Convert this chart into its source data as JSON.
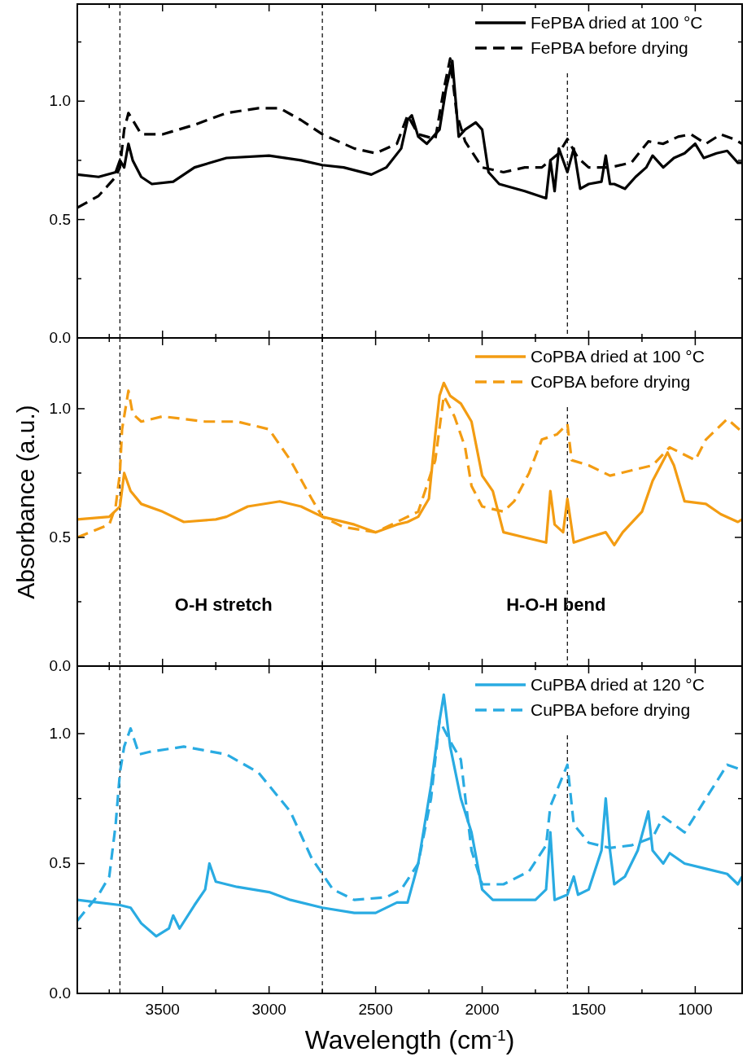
{
  "chart_data": [
    {
      "type": "line",
      "xlim": [
        3900,
        780
      ],
      "xticks": [
        {
          "value": 3750,
          "label": null
        },
        3500,
        {
          "value": 3250,
          "label": null
        },
        3000,
        {
          "value": 2750,
          "label": null
        },
        2500,
        {
          "value": 2250,
          "label": null
        },
        2000,
        {
          "value": 1750,
          "label": null
        },
        1500,
        {
          "value": 1250,
          "label": null
        },
        1000
      ],
      "ylim": [
        0,
        1.41
      ],
      "yticks": [
        {
          "value": 0,
          "label": "0.0"
        },
        {
          "value": 0.25,
          "label": null
        },
        {
          "value": 0.5,
          "label": "0.5"
        },
        {
          "value": 0.75,
          "label": null
        },
        {
          "value": 1,
          "label": "1.0"
        },
        {
          "value": 1.25,
          "label": null
        }
      ],
      "tick_labels": "y",
      "legend": "top right",
      "ref_lines": [
        {
          "axis": "x",
          "value": 3700,
          "color": "#000000",
          "line_style": "dashed"
        },
        {
          "axis": "x",
          "value": 2750,
          "color": "#000000",
          "line_style": "dashed"
        },
        {
          "axis": "x",
          "value": 1600,
          "color": "#000000",
          "line_style": "dashed"
        }
      ],
      "series": [
        {
          "name": "FePBA dried at 100 °C",
          "color": "#000000",
          "line_style": "solid",
          "x": [
            3900,
            3800,
            3720,
            3700,
            3680,
            3660,
            3640,
            3600,
            3550,
            3450,
            3350,
            3200,
            3000,
            2850,
            2750,
            2650,
            2520,
            2450,
            2380,
            2350,
            2330,
            2300,
            2260,
            2200,
            2170,
            2140,
            2110,
            2080,
            2030,
            2000,
            1970,
            1920,
            1800,
            1700,
            1680,
            1660,
            1640,
            1600,
            1570,
            1540,
            1500,
            1440,
            1420,
            1400,
            1380,
            1330,
            1280,
            1230,
            1200,
            1150,
            1100,
            1050,
            1000,
            960,
            900,
            850,
            800,
            780
          ],
          "values": [
            0.69,
            0.68,
            0.7,
            0.75,
            0.72,
            0.82,
            0.75,
            0.68,
            0.65,
            0.66,
            0.72,
            0.76,
            0.77,
            0.75,
            0.73,
            0.72,
            0.69,
            0.72,
            0.8,
            0.92,
            0.94,
            0.85,
            0.82,
            0.88,
            1.05,
            1.17,
            0.85,
            0.88,
            0.91,
            0.88,
            0.7,
            0.65,
            0.62,
            0.59,
            0.75,
            0.62,
            0.8,
            0.7,
            0.8,
            0.63,
            0.65,
            0.66,
            0.77,
            0.65,
            0.65,
            0.63,
            0.68,
            0.72,
            0.77,
            0.72,
            0.76,
            0.78,
            0.82,
            0.76,
            0.78,
            0.79,
            0.74,
            0.74
          ]
        },
        {
          "name": "FePBA before drying",
          "color": "#000000",
          "line_style": "dashed",
          "x": [
            3900,
            3800,
            3720,
            3700,
            3680,
            3660,
            3640,
            3600,
            3500,
            3350,
            3200,
            3050,
            2950,
            2850,
            2750,
            2600,
            2500,
            2400,
            2350,
            2300,
            2220,
            2180,
            2150,
            2120,
            2080,
            2000,
            1900,
            1800,
            1720,
            1680,
            1640,
            1600,
            1550,
            1500,
            1400,
            1300,
            1220,
            1150,
            1080,
            1020,
            950,
            880,
            820,
            780
          ],
          "values": [
            0.55,
            0.6,
            0.68,
            0.72,
            0.88,
            0.95,
            0.92,
            0.86,
            0.86,
            0.9,
            0.95,
            0.97,
            0.97,
            0.92,
            0.86,
            0.8,
            0.78,
            0.82,
            0.94,
            0.86,
            0.84,
            1.05,
            1.18,
            0.95,
            0.83,
            0.72,
            0.7,
            0.72,
            0.72,
            0.75,
            0.78,
            0.84,
            0.76,
            0.72,
            0.72,
            0.74,
            0.83,
            0.82,
            0.85,
            0.86,
            0.82,
            0.86,
            0.84,
            0.82
          ]
        }
      ]
    },
    {
      "type": "line",
      "xlim": [
        3900,
        780
      ],
      "xticks": [
        {
          "value": 3750,
          "label": null
        },
        3500,
        {
          "value": 3250,
          "label": null
        },
        3000,
        {
          "value": 2750,
          "label": null
        },
        2500,
        {
          "value": 2250,
          "label": null
        },
        2000,
        {
          "value": 1750,
          "label": null
        },
        1500,
        {
          "value": 1250,
          "label": null
        },
        1000
      ],
      "ylim": [
        0,
        1.275
      ],
      "yticks": [
        {
          "value": 0,
          "label": "0.0"
        },
        {
          "value": 0.25,
          "label": null
        },
        {
          "value": 0.5,
          "label": "0.5"
        },
        {
          "value": 0.75,
          "label": null
        },
        {
          "value": 1,
          "label": "1.0"
        }
      ],
      "tick_labels": "y",
      "ylabel": "Absorbance (a.u.)",
      "legend": "top right",
      "annotations": [
        "O-H stretch",
        "H-O-H bend"
      ],
      "ref_lines": [
        {
          "axis": "x",
          "value": 3700,
          "color": "#000000",
          "line_style": "dashed"
        },
        {
          "axis": "x",
          "value": 2750,
          "color": "#000000",
          "line_style": "dashed"
        },
        {
          "axis": "x",
          "value": 1600,
          "color": "#000000",
          "line_style": "dashed"
        }
      ],
      "series": [
        {
          "name": "CoPBA dried at 100 °C",
          "color": "#f39c12",
          "line_style": "solid",
          "x": [
            3900,
            3750,
            3700,
            3680,
            3650,
            3600,
            3500,
            3400,
            3250,
            3200,
            3100,
            2950,
            2850,
            2750,
            2600,
            2500,
            2400,
            2350,
            2300,
            2250,
            2220,
            2200,
            2180,
            2150,
            2100,
            2050,
            2000,
            1950,
            1900,
            1800,
            1700,
            1680,
            1660,
            1620,
            1600,
            1570,
            1500,
            1420,
            1380,
            1340,
            1250,
            1200,
            1130,
            1100,
            1050,
            950,
            880,
            800,
            780
          ],
          "values": [
            0.57,
            0.58,
            0.62,
            0.75,
            0.68,
            0.63,
            0.6,
            0.56,
            0.57,
            0.58,
            0.62,
            0.64,
            0.62,
            0.58,
            0.55,
            0.52,
            0.55,
            0.56,
            0.58,
            0.65,
            0.9,
            1.05,
            1.1,
            1.05,
            1.02,
            0.95,
            0.74,
            0.68,
            0.52,
            0.5,
            0.48,
            0.68,
            0.55,
            0.52,
            0.65,
            0.48,
            0.5,
            0.52,
            0.47,
            0.52,
            0.6,
            0.72,
            0.83,
            0.78,
            0.64,
            0.63,
            0.59,
            0.56,
            0.57
          ]
        },
        {
          "name": "CoPBA before drying",
          "color": "#f39c12",
          "line_style": "dashed",
          "x": [
            3900,
            3750,
            3720,
            3700,
            3690,
            3660,
            3640,
            3600,
            3500,
            3300,
            3150,
            3000,
            2900,
            2800,
            2750,
            2650,
            2500,
            2400,
            2300,
            2220,
            2180,
            2130,
            2080,
            2050,
            2000,
            1900,
            1850,
            1780,
            1720,
            1650,
            1600,
            1580,
            1500,
            1400,
            1300,
            1200,
            1120,
            1000,
            950,
            850,
            780
          ],
          "values": [
            0.5,
            0.55,
            0.62,
            0.75,
            0.92,
            1.07,
            0.98,
            0.95,
            0.97,
            0.95,
            0.95,
            0.92,
            0.8,
            0.65,
            0.58,
            0.54,
            0.52,
            0.56,
            0.6,
            0.8,
            1.05,
            0.97,
            0.85,
            0.7,
            0.62,
            0.6,
            0.64,
            0.75,
            0.88,
            0.9,
            0.94,
            0.8,
            0.78,
            0.74,
            0.76,
            0.78,
            0.85,
            0.8,
            0.88,
            0.96,
            0.91
          ]
        }
      ]
    },
    {
      "type": "line",
      "xlim": [
        3900,
        780
      ],
      "xticks": [
        {
          "value": 3750,
          "label": null
        },
        {
          "value": 3500,
          "label": "3500"
        },
        {
          "value": 3250,
          "label": null
        },
        {
          "value": 3000,
          "label": "3000"
        },
        {
          "value": 2750,
          "label": null
        },
        {
          "value": 2500,
          "label": "2500"
        },
        {
          "value": 2250,
          "label": null
        },
        {
          "value": 2000,
          "label": "2000"
        },
        {
          "value": 1750,
          "label": null
        },
        {
          "value": 1500,
          "label": "1500"
        },
        {
          "value": 1250,
          "label": null
        },
        {
          "value": 1000,
          "label": "1000"
        }
      ],
      "ylim": [
        0,
        1.26
      ],
      "yticks": [
        {
          "value": 0,
          "label": "0.0"
        },
        {
          "value": 0.25,
          "label": null
        },
        {
          "value": 0.5,
          "label": "0.5"
        },
        {
          "value": 0.75,
          "label": null
        },
        {
          "value": 1,
          "label": "1.0"
        }
      ],
      "xlabel": "Wavelength (cm$^{-1}$)",
      "legend": "top right",
      "ref_lines": [
        {
          "axis": "x",
          "value": 3700,
          "color": "#000000",
          "line_style": "dashed"
        },
        {
          "axis": "x",
          "value": 2750,
          "color": "#000000",
          "line_style": "dashed"
        },
        {
          "axis": "x",
          "value": 1600,
          "color": "#000000",
          "line_style": "dashed"
        }
      ],
      "series": [
        {
          "name": "CuPBA dried at 120 °C",
          "color": "#29abe2",
          "line_style": "solid",
          "x": [
            3900,
            3800,
            3700,
            3650,
            3600,
            3530,
            3470,
            3450,
            3420,
            3350,
            3300,
            3280,
            3250,
            3150,
            3000,
            2900,
            2750,
            2600,
            2500,
            2400,
            2350,
            2300,
            2240,
            2200,
            2180,
            2150,
            2100,
            2050,
            2000,
            1950,
            1850,
            1750,
            1700,
            1680,
            1660,
            1600,
            1570,
            1550,
            1500,
            1440,
            1420,
            1400,
            1380,
            1330,
            1270,
            1220,
            1200,
            1150,
            1120,
            1050,
            950,
            850,
            800,
            780
          ],
          "values": [
            0.36,
            0.35,
            0.34,
            0.33,
            0.27,
            0.22,
            0.25,
            0.3,
            0.25,
            0.34,
            0.4,
            0.5,
            0.43,
            0.41,
            0.39,
            0.36,
            0.33,
            0.31,
            0.31,
            0.35,
            0.35,
            0.5,
            0.8,
            1.05,
            1.15,
            0.95,
            0.75,
            0.62,
            0.4,
            0.36,
            0.36,
            0.36,
            0.4,
            0.62,
            0.36,
            0.38,
            0.45,
            0.38,
            0.4,
            0.55,
            0.75,
            0.55,
            0.42,
            0.45,
            0.55,
            0.7,
            0.55,
            0.5,
            0.54,
            0.5,
            0.48,
            0.46,
            0.42,
            0.45
          ]
        },
        {
          "name": "CuPBA before drying",
          "color": "#29abe2",
          "line_style": "dashed",
          "x": [
            3900,
            3800,
            3750,
            3720,
            3700,
            3680,
            3650,
            3610,
            3560,
            3400,
            3200,
            3050,
            2900,
            2800,
            2700,
            2600,
            2450,
            2380,
            2300,
            2240,
            2200,
            2150,
            2100,
            2050,
            2000,
            1900,
            1780,
            1700,
            1680,
            1640,
            1600,
            1570,
            1500,
            1400,
            1300,
            1200,
            1150,
            1050,
            950,
            850,
            780
          ],
          "values": [
            0.28,
            0.38,
            0.45,
            0.65,
            0.85,
            0.95,
            1.02,
            0.92,
            0.93,
            0.95,
            0.92,
            0.85,
            0.7,
            0.52,
            0.4,
            0.36,
            0.37,
            0.4,
            0.5,
            0.75,
            1.05,
            0.97,
            0.9,
            0.55,
            0.42,
            0.42,
            0.47,
            0.57,
            0.72,
            0.8,
            0.88,
            0.65,
            0.58,
            0.56,
            0.57,
            0.6,
            0.68,
            0.62,
            0.75,
            0.88,
            0.86
          ]
        }
      ]
    }
  ]
}
